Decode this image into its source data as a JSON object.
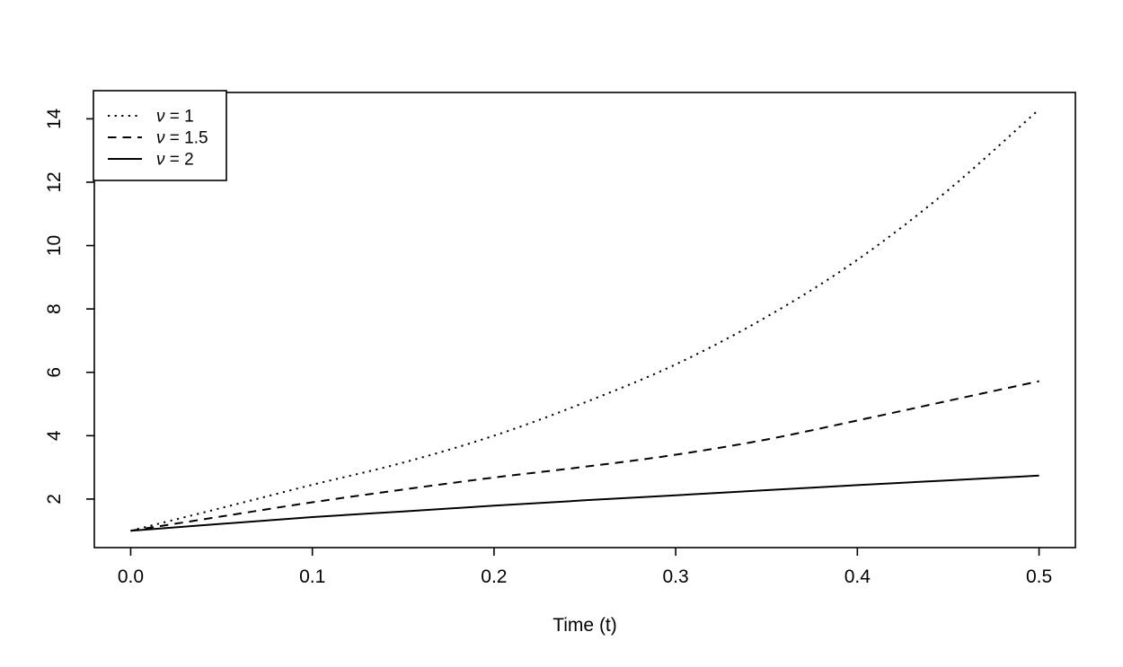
{
  "figure": {
    "background": "#ffffff",
    "ink_color": "#000000"
  },
  "chart_data": {
    "type": "line",
    "title": "",
    "xlabel": "Time (t)",
    "ylabel": "",
    "grid": false,
    "legend_position": "topleft",
    "xlim": [
      -0.02,
      0.52
    ],
    "ylim": [
      0.468,
      14.832
    ],
    "x_ticks": [
      0.0,
      0.1,
      0.2,
      0.3,
      0.4,
      0.5
    ],
    "x_tick_labels": [
      "0.0",
      "0.1",
      "0.2",
      "0.3",
      "0.4",
      "0.5"
    ],
    "y_ticks": [
      2,
      4,
      6,
      8,
      10,
      12,
      14
    ],
    "y_tick_labels": [
      "2",
      "4",
      "6",
      "8",
      "10",
      "12",
      "14"
    ],
    "x": [
      0,
      0.05,
      0.1,
      0.15,
      0.2,
      0.25,
      0.3,
      0.35,
      0.4,
      0.45,
      0.5
    ],
    "series": [
      {
        "name": "ν = 1",
        "linestyle": "dotted",
        "color": "#000000",
        "values": [
          1.0,
          1.72,
          2.45,
          3.15,
          4.0,
          5.05,
          6.25,
          7.75,
          9.55,
          11.75,
          14.3
        ]
      },
      {
        "name": "ν = 1.5",
        "linestyle": "dashed",
        "color": "#000000",
        "values": [
          1.0,
          1.45,
          1.9,
          2.3,
          2.68,
          3.02,
          3.4,
          3.88,
          4.48,
          5.1,
          5.72
        ]
      },
      {
        "name": "ν = 2",
        "linestyle": "solid",
        "color": "#000000",
        "values": [
          1.0,
          1.22,
          1.43,
          1.61,
          1.79,
          1.96,
          2.12,
          2.28,
          2.44,
          2.59,
          2.74
        ]
      }
    ]
  }
}
